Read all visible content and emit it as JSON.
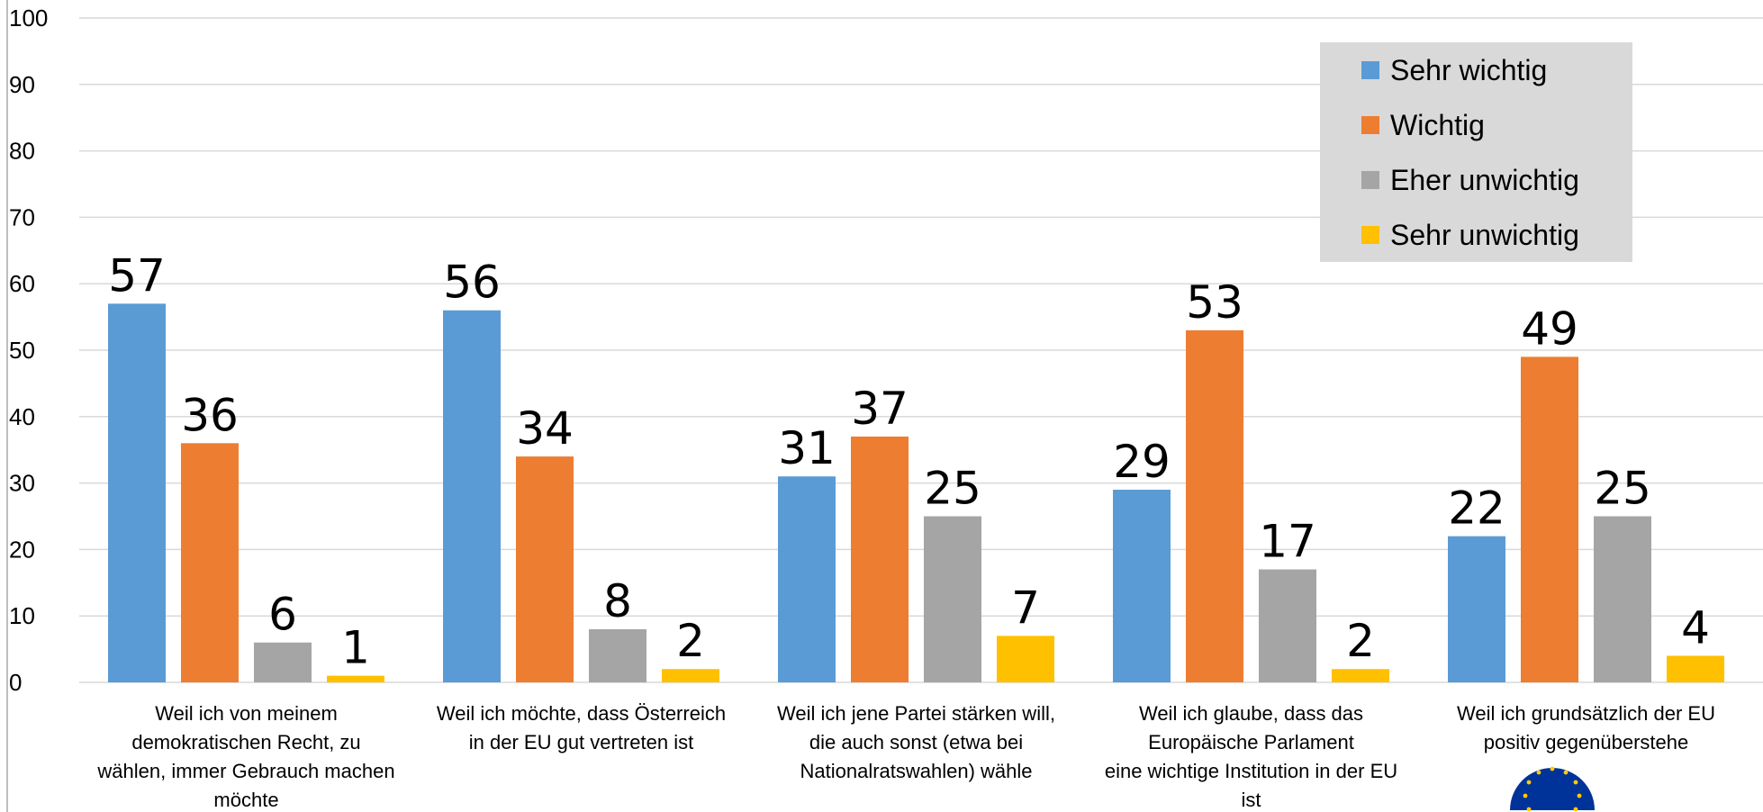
{
  "chart_data": {
    "type": "bar",
    "title": "",
    "xlabel": "",
    "ylabel": "",
    "ylim": [
      0,
      100
    ],
    "yticks": [
      0,
      10,
      20,
      30,
      40,
      50,
      60,
      70,
      80,
      90,
      100
    ],
    "grid": true,
    "legend_position": "top-right",
    "categories": [
      [
        "Weil ich von meinem",
        "demokratischen Recht, zu",
        "wählen, immer Gebrauch machen",
        "möchte"
      ],
      [
        "Weil ich möchte, dass Österreich",
        "in der EU gut vertreten ist"
      ],
      [
        "Weil ich jene Partei stärken will,",
        "die auch sonst (etwa bei",
        "Nationalratswahlen) wähle"
      ],
      [
        "Weil ich glaube, dass das",
        "Europäische Parlament",
        "eine wichtige Institution in der EU",
        "ist"
      ],
      [
        "Weil ich grundsätzlich der EU",
        "positiv gegenüberstehe"
      ]
    ],
    "series": [
      {
        "name": "Sehr wichtig",
        "color": "#5B9BD5",
        "values": [
          57,
          56,
          31,
          29,
          22
        ]
      },
      {
        "name": "Wichtig",
        "color": "#ED7D31",
        "values": [
          36,
          34,
          37,
          53,
          49
        ]
      },
      {
        "name": "Eher unwichtig",
        "color": "#A5A5A5",
        "values": [
          6,
          8,
          25,
          17,
          25
        ]
      },
      {
        "name": "Sehr unwichtig",
        "color": "#FFC000",
        "values": [
          1,
          2,
          7,
          2,
          4
        ]
      }
    ],
    "colors": {
      "grid": "#D9D9D9",
      "legend_bg": "#D9D9D9",
      "axis": "#BFBFBF",
      "logo": "#003399",
      "logo_stars": "#FFCC00"
    }
  },
  "logo": {
    "icon": "eu-flag-logo-icon"
  }
}
